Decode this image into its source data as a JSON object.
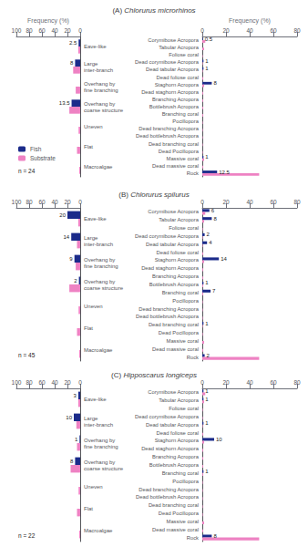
{
  "chart_data": [
    {
      "type": "bar",
      "orientation": "horizontal",
      "title": "(A) Chlorurus microrhinos",
      "xlabel": "Frequency (%)",
      "categories": [
        "Eave-like",
        "Large\ninter-branch",
        "Overhang by\nfine branching",
        "Overhang by\ncoarse structure",
        "Uneven",
        "Flat",
        "Macroalgae"
      ],
      "series": [
        {
          "name": "Fish",
          "color": "#1B2B8A",
          "values": [
            2.5,
            8,
            0,
            13.5,
            0,
            0,
            0
          ],
          "value_labels": [
            "2.5",
            "8",
            null,
            "13.5",
            null,
            null,
            null
          ]
        },
        {
          "name": "Substrate",
          "color": "#EE82C3",
          "values": [
            3.0,
            11.0,
            7.0,
            17.0,
            2.5,
            5.0,
            1.5
          ]
        }
      ],
      "xlim": [
        100,
        0
      ],
      "xticks": [
        100,
        80,
        60,
        40,
        20,
        0
      ],
      "grid": false,
      "legend": "lower left",
      "annotations": [
        "n = 24"
      ]
    },
    {
      "type": "bar",
      "orientation": "horizontal",
      "xlabel": "Frequency (%)",
      "categories": [
        "Corymibose Acropora",
        "Tabular Acropora",
        "Foliose coral",
        "Dead corymibose Acropora",
        "Dead tabular Acropora",
        "Dead foliose coral",
        "Staghorn Acropora",
        "Dead staghorn Acropora",
        "Branching Acropora",
        "Bottlebrush Acropora",
        "Branching coral",
        "Pocillopora",
        "Dead branching Acropora",
        "Dead bottlebrush Acropora",
        "Dead branching coral",
        "Dead Pocillopora",
        "Massive coral",
        "Dead massive coral",
        "Rock"
      ],
      "series": [
        {
          "name": "Fish",
          "color": "#1B2B8A",
          "values": [
            0.5,
            0,
            0,
            1,
            1,
            0,
            8,
            0,
            0,
            0,
            0,
            0,
            0,
            0,
            0,
            0,
            1,
            0,
            12.5
          ],
          "value_labels": [
            "0.5",
            null,
            null,
            "1",
            "1",
            null,
            "8",
            null,
            null,
            null,
            null,
            null,
            null,
            null,
            null,
            null,
            "1",
            null,
            "12.5"
          ]
        },
        {
          "name": "Substrate",
          "color": "#EE82C3",
          "values": [
            2.5,
            1.5,
            0.4,
            0.4,
            0.4,
            0.7,
            1.5,
            0.7,
            0.7,
            0.7,
            0.7,
            0.4,
            0.4,
            0.4,
            0.4,
            0.4,
            1.5,
            0.7,
            48.0
          ]
        }
      ],
      "xlim": [
        0,
        80
      ],
      "xticks": [
        0,
        20,
        40,
        60,
        80
      ],
      "grid": false
    },
    {
      "type": "bar",
      "orientation": "horizontal",
      "title": "(B) Chlorurus spilurus",
      "categories": [
        "Eave-like",
        "Large\ninter-branch",
        "Overhang by\nfine branching",
        "Overhang by\ncoarse structure",
        "Uneven",
        "Flat",
        "Macroalgae"
      ],
      "series": [
        {
          "name": "Fish",
          "color": "#1B2B8A",
          "values": [
            20,
            14,
            9,
            2,
            0,
            0,
            0
          ],
          "value_labels": [
            "20",
            "14",
            "9",
            "2",
            null,
            null,
            null
          ]
        },
        {
          "name": "Substrate",
          "color": "#EE82C3",
          "values": [
            3.0,
            5.0,
            7.0,
            17.0,
            2.5,
            5.0,
            1.5
          ]
        }
      ],
      "xlim": [
        100,
        0
      ],
      "xticks": [
        100,
        80,
        60,
        40,
        20,
        0
      ],
      "grid": false,
      "annotations": [
        "n = 45"
      ]
    },
    {
      "type": "bar",
      "orientation": "horizontal",
      "categories": [
        "Corymibose Acropora",
        "Tabular Acropora",
        "Foliose coral",
        "Dead corymibose Acropora",
        "Dead tabular Acropora",
        "Dead foliose coral",
        "Staghorn Acropora",
        "Dead staghorn Acropora",
        "Branching Acropora",
        "Bottlebrush Acropora",
        "Branching coral",
        "Pocillopora",
        "Dead branching Acropora",
        "Dead bottlebrush Acropora",
        "Dead branching coral",
        "Dead Pocillopora",
        "Massive coral",
        "Dead massive coral",
        "Rock"
      ],
      "series": [
        {
          "name": "Fish",
          "color": "#1B2B8A",
          "values": [
            6,
            8,
            0,
            2,
            4,
            0,
            14,
            0,
            0,
            1,
            7,
            0,
            0,
            0,
            1,
            0,
            0,
            0,
            2
          ],
          "value_labels": [
            "6",
            "8",
            null,
            "2",
            "4",
            null,
            "14",
            null,
            null,
            "1",
            "7",
            null,
            null,
            null,
            "1",
            null,
            null,
            null,
            "2"
          ]
        },
        {
          "name": "Substrate",
          "color": "#EE82C3",
          "values": [
            2.5,
            1.5,
            0.4,
            0.4,
            0.4,
            0.7,
            1.5,
            0.7,
            0.7,
            0.7,
            0.7,
            0.4,
            0.4,
            0.4,
            0.4,
            0.4,
            1.5,
            0.7,
            48.0
          ]
        }
      ],
      "xlim": [
        0,
        80
      ],
      "xticks": [
        0,
        20,
        40,
        60,
        80
      ],
      "grid": false
    },
    {
      "type": "bar",
      "orientation": "horizontal",
      "title": "(C) Hipposcarus longiceps",
      "categories": [
        "Eave-like",
        "Large\ninter-branch",
        "Overhang by\nfine branching",
        "Overhang by\ncoarse structure",
        "Uneven",
        "Flat",
        "Macroalgae"
      ],
      "series": [
        {
          "name": "Fish",
          "color": "#1B2B8A",
          "values": [
            3,
            10,
            1,
            8,
            0,
            0,
            0
          ],
          "value_labels": [
            "3",
            "10",
            "1",
            "8",
            null,
            null,
            null
          ]
        },
        {
          "name": "Substrate",
          "color": "#EE82C3",
          "values": [
            3.0,
            6.0,
            5.0,
            15.0,
            2.5,
            5.0,
            1.5
          ]
        }
      ],
      "xlim": [
        100,
        0
      ],
      "xticks": [
        100,
        80,
        60,
        40,
        20,
        0
      ],
      "grid": false,
      "annotations": [
        "n = 22"
      ]
    },
    {
      "type": "bar",
      "orientation": "horizontal",
      "categories": [
        "Corymibose Acropora",
        "Tabular Acropora",
        "Foliose coral",
        "Dead corymibose Acropora",
        "Dead tabular Acropora",
        "Dead foliose coral",
        "Staghorn Acropora",
        "Dead staghorn Acropora",
        "Branching Acropora",
        "Bottlebrush Acropora",
        "Branching coral",
        "Pocillopora",
        "Dead branching Acropora",
        "Dead bottlebrush Acropora",
        "Dead branching coral",
        "Dead Pocillopora",
        "Massive coral",
        "Dead massive coral",
        "Rock"
      ],
      "series": [
        {
          "name": "Fish",
          "color": "#1B2B8A",
          "values": [
            1,
            1,
            0,
            0,
            1,
            0,
            10,
            0,
            0,
            0,
            1,
            0,
            0,
            0,
            0,
            0,
            0,
            0,
            8
          ],
          "value_labels": [
            "1",
            "1",
            null,
            null,
            "1",
            null,
            "10",
            null,
            null,
            null,
            "1",
            null,
            null,
            null,
            null,
            null,
            null,
            null,
            "8"
          ]
        },
        {
          "name": "Substrate",
          "color": "#EE82C3",
          "values": [
            2.5,
            1.5,
            0.4,
            0.4,
            0.4,
            0.7,
            1.5,
            0.7,
            0.7,
            0.7,
            0.7,
            0.4,
            0.4,
            0.4,
            0.4,
            0.4,
            1.5,
            0.7,
            48.0
          ]
        }
      ],
      "xlim": [
        0,
        80
      ],
      "xticks": [
        0,
        20,
        40,
        60,
        80
      ],
      "grid": false
    }
  ]
}
